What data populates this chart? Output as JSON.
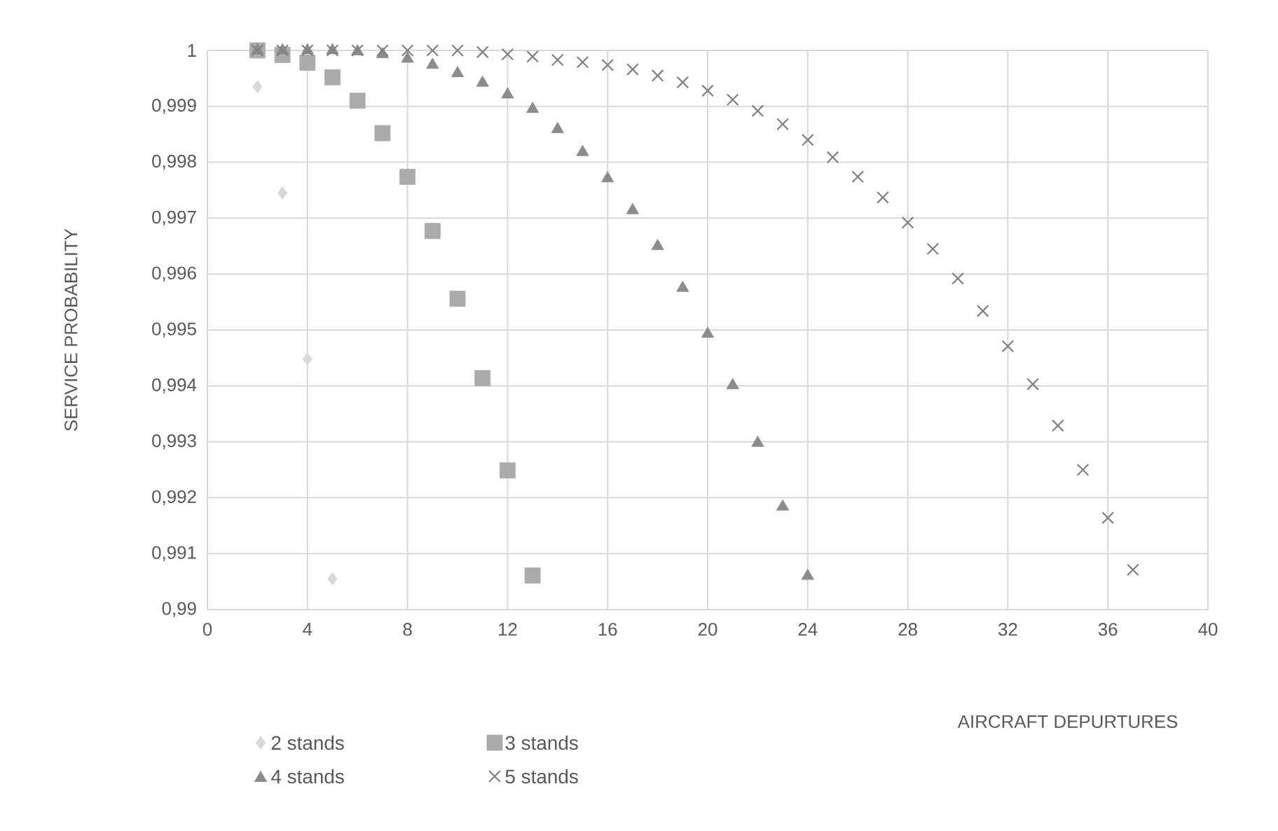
{
  "chart_data": {
    "type": "scatter",
    "xlabel": "AIRCRAFT DEPURTURES",
    "ylabel": "SERVICE PROBABILITY",
    "xlim": [
      0,
      40
    ],
    "xticks": [
      0,
      4,
      8,
      12,
      16,
      20,
      24,
      28,
      32,
      36,
      40
    ],
    "ylim": [
      0.99,
      1
    ],
    "yticks": [
      {
        "value": 0.99,
        "label": "0,99"
      },
      {
        "value": 0.991,
        "label": "0,991"
      },
      {
        "value": 0.992,
        "label": "0,992"
      },
      {
        "value": 0.993,
        "label": "0,993"
      },
      {
        "value": 0.994,
        "label": "0,994"
      },
      {
        "value": 0.995,
        "label": "0,995"
      },
      {
        "value": 0.996,
        "label": "0,996"
      },
      {
        "value": 0.997,
        "label": "0,997"
      },
      {
        "value": 0.998,
        "label": "0,998"
      },
      {
        "value": 0.999,
        "label": "0,999"
      },
      {
        "value": 1,
        "label": "1"
      }
    ],
    "grid": true,
    "legend": "bottom left",
    "series": [
      {
        "name": "2 stands",
        "color": "#d9d9d9",
        "marker": "diamond",
        "x": [
          2,
          3,
          4,
          5
        ],
        "values": [
          0.99935,
          0.99745,
          0.99448,
          0.99055
        ]
      },
      {
        "name": "3 stands",
        "color": "#ababab",
        "marker": "square",
        "x": [
          2,
          3,
          4,
          5,
          6,
          7,
          8,
          9,
          10,
          11,
          12,
          13
        ],
        "values": [
          1,
          0.99992,
          0.99978,
          0.99952,
          0.9991,
          0.99852,
          0.99774,
          0.99677,
          0.99556,
          0.99414,
          0.99249,
          0.99061
        ]
      },
      {
        "name": "4 stands",
        "color": "#8c8c8c",
        "marker": "triangle",
        "x": [
          2,
          3,
          4,
          5,
          6,
          7,
          8,
          9,
          10,
          11,
          12,
          13,
          14,
          15,
          16,
          17,
          18,
          19,
          20,
          21,
          22,
          23,
          24
        ],
        "values": [
          1,
          1,
          1,
          1,
          0.99998,
          0.99993,
          0.99985,
          0.99974,
          0.99959,
          0.99942,
          0.99921,
          0.99895,
          0.99859,
          0.99818,
          0.99771,
          0.99714,
          0.9965,
          0.99575,
          0.99493,
          0.99401,
          0.99298,
          0.99184,
          0.9906
        ]
      },
      {
        "name": "5 stands",
        "color": "#808080",
        "marker": "cross",
        "x": [
          2,
          3,
          4,
          5,
          6,
          7,
          8,
          9,
          10,
          11,
          12,
          13,
          14,
          15,
          16,
          17,
          18,
          19,
          20,
          21,
          22,
          23,
          24,
          25,
          26,
          27,
          28,
          29,
          30,
          31,
          32,
          33,
          34,
          35,
          36,
          37
        ],
        "values": [
          1,
          1,
          1,
          1,
          1,
          1,
          1,
          1,
          1,
          0.99997,
          0.99993,
          0.99989,
          0.99983,
          0.99979,
          0.99974,
          0.99966,
          0.99955,
          0.99943,
          0.99928,
          0.99912,
          0.99892,
          0.99868,
          0.9984,
          0.99809,
          0.99774,
          0.99737,
          0.99692,
          0.99645,
          0.99592,
          0.99534,
          0.99471,
          0.99403,
          0.99329,
          0.9925,
          0.99164,
          0.99071
        ]
      }
    ]
  }
}
